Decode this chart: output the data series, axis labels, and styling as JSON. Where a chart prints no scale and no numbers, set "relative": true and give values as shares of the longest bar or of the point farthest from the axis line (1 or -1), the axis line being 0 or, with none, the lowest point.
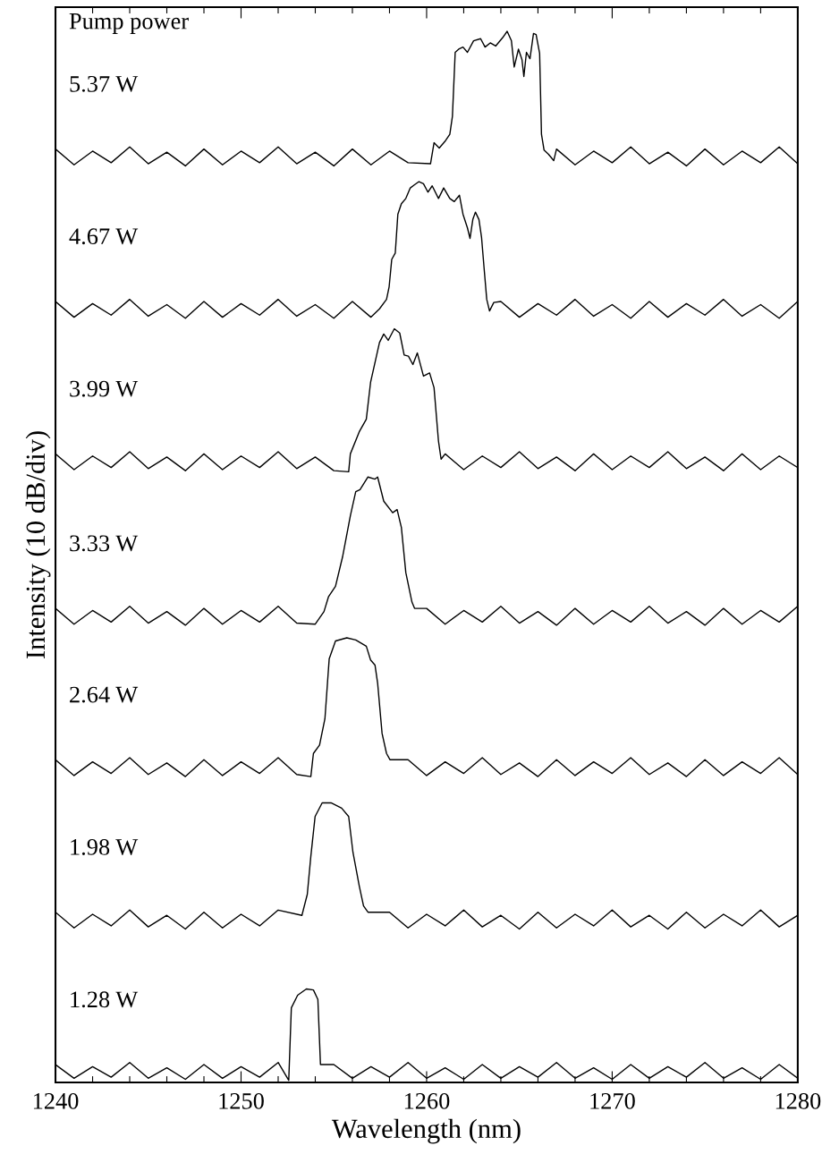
{
  "chart_data": {
    "type": "line",
    "relative": true,
    "xlabel": "Wavelength (nm)",
    "ylabel": "Intensity (10 dB/div)",
    "annotations": [
      "Pump power"
    ],
    "xlim": [
      1240,
      1280
    ],
    "xticks": [
      1240,
      {
        "value": 1242,
        "label": null
      },
      {
        "value": 1244,
        "label": null
      },
      {
        "value": 1246,
        "label": null
      },
      {
        "value": 1248,
        "label": null
      },
      1250,
      {
        "value": 1252,
        "label": null
      },
      {
        "value": 1254,
        "label": null
      },
      {
        "value": 1256,
        "label": null
      },
      {
        "value": 1258,
        "label": null
      },
      1260,
      {
        "value": 1262,
        "label": null
      },
      {
        "value": 1264,
        "label": null
      },
      {
        "value": 1266,
        "label": null
      },
      {
        "value": 1268,
        "label": null
      },
      1270,
      {
        "value": 1272,
        "label": null
      },
      {
        "value": 1274,
        "label": null
      },
      {
        "value": 1276,
        "label": null
      },
      {
        "value": 1278,
        "label": null
      },
      1280
    ],
    "grid": false,
    "legend": false,
    "marker": "none",
    "line_style": "solid",
    "series": [
      {
        "name": "5.37 W",
        "color": "#000000",
        "x": [
          1240,
          1241,
          1242,
          1243,
          1244,
          1245,
          1246,
          1247,
          1248,
          1249,
          1250,
          1251,
          1252,
          1253,
          1254,
          1255,
          1256,
          1257,
          1258,
          1259,
          1260.21,
          1260.4,
          1260.68,
          1261.02,
          1261.25,
          1261.39,
          1261.54,
          1261.73,
          1261.96,
          1262.2,
          1262.53,
          1262.91,
          1263.15,
          1263.43,
          1263.72,
          1264.1,
          1264.34,
          1264.57,
          1264.72,
          1264.95,
          1265.14,
          1265.24,
          1265.38,
          1265.57,
          1265.76,
          1265.9,
          1266.09,
          1266.19,
          1266.33,
          1266.57,
          1266.85,
          1267,
          1268,
          1269,
          1270,
          1271,
          1272,
          1273,
          1274,
          1275,
          1276,
          1277,
          1278,
          1279,
          1280
        ],
        "values": [
          0.888,
          0.873,
          0.886,
          0.875,
          0.89,
          0.874,
          0.885,
          0.872,
          0.888,
          0.873,
          0.886,
          0.875,
          0.89,
          0.874,
          0.885,
          0.872,
          0.888,
          0.873,
          0.886,
          0.875,
          0.874,
          0.894,
          0.889,
          0.896,
          0.902,
          0.919,
          0.98,
          0.983,
          0.985,
          0.98,
          0.991,
          0.993,
          0.985,
          0.989,
          0.986,
          0.994,
          1.0,
          0.991,
          0.966,
          0.983,
          0.973,
          0.957,
          0.98,
          0.974,
          0.998,
          0.997,
          0.979,
          0.902,
          0.887,
          0.883,
          0.877,
          0.888,
          0.873,
          0.886,
          0.875,
          0.89,
          0.874,
          0.885,
          0.872,
          0.888,
          0.873,
          0.886,
          0.875,
          0.89,
          0.874
        ]
      },
      {
        "name": "4.67 W",
        "color": "#000000",
        "x": [
          1240,
          1241,
          1242,
          1243,
          1244,
          1245,
          1246,
          1247,
          1248,
          1249,
          1250,
          1251,
          1252,
          1253,
          1254,
          1255,
          1256,
          1257,
          1257.46,
          1257.84,
          1257.98,
          1258.12,
          1258.31,
          1258.45,
          1258.64,
          1258.88,
          1259.12,
          1259.35,
          1259.59,
          1259.83,
          1260.07,
          1260.3,
          1260.64,
          1260.92,
          1261.25,
          1261.49,
          1261.77,
          1261.96,
          1262.2,
          1262.34,
          1262.49,
          1262.63,
          1262.82,
          1262.96,
          1263.1,
          1263.24,
          1263.39,
          1263.62,
          1264,
          1265,
          1266,
          1267,
          1268,
          1269,
          1270,
          1271,
          1272,
          1273,
          1274,
          1275,
          1276,
          1277,
          1278,
          1279,
          1280
        ],
        "values": [
          0.743,
          0.728,
          0.741,
          0.73,
          0.745,
          0.729,
          0.74,
          0.727,
          0.743,
          0.728,
          0.741,
          0.73,
          0.745,
          0.729,
          0.74,
          0.727,
          0.743,
          0.728,
          0.736,
          0.745,
          0.757,
          0.783,
          0.789,
          0.826,
          0.836,
          0.841,
          0.851,
          0.854,
          0.857,
          0.855,
          0.847,
          0.853,
          0.841,
          0.851,
          0.841,
          0.838,
          0.844,
          0.826,
          0.813,
          0.803,
          0.821,
          0.828,
          0.821,
          0.804,
          0.774,
          0.745,
          0.734,
          0.742,
          0.743,
          0.728,
          0.741,
          0.73,
          0.745,
          0.729,
          0.74,
          0.727,
          0.743,
          0.728,
          0.741,
          0.73,
          0.745,
          0.729,
          0.74,
          0.727,
          0.743
        ]
      },
      {
        "name": "3.99 W",
        "color": "#000000",
        "x": [
          1240,
          1241,
          1242,
          1243,
          1244,
          1245,
          1246,
          1247,
          1248,
          1249,
          1250,
          1251,
          1252,
          1253,
          1254,
          1255,
          1255.8,
          1255.89,
          1256.37,
          1256.75,
          1256.98,
          1257.46,
          1257.69,
          1257.93,
          1258.26,
          1258.55,
          1258.79,
          1259.02,
          1259.26,
          1259.5,
          1259.83,
          1260.16,
          1260.4,
          1260.64,
          1260.78,
          1261,
          1262,
          1263,
          1264,
          1265,
          1266,
          1267,
          1268,
          1269,
          1270,
          1271,
          1272,
          1273,
          1274,
          1275,
          1276,
          1277,
          1278,
          1279,
          1280
        ],
        "values": [
          0.598,
          0.583,
          0.596,
          0.585,
          0.6,
          0.584,
          0.595,
          0.582,
          0.598,
          0.583,
          0.596,
          0.585,
          0.6,
          0.584,
          0.595,
          0.582,
          0.581,
          0.598,
          0.619,
          0.631,
          0.666,
          0.704,
          0.712,
          0.706,
          0.717,
          0.713,
          0.692,
          0.691,
          0.683,
          0.694,
          0.672,
          0.675,
          0.661,
          0.61,
          0.593,
          0.598,
          0.583,
          0.596,
          0.585,
          0.6,
          0.584,
          0.595,
          0.582,
          0.598,
          0.583,
          0.596,
          0.585,
          0.6,
          0.584,
          0.595,
          0.582,
          0.598,
          0.583,
          0.596,
          0.585
        ]
      },
      {
        "name": "3.33 W",
        "color": "#000000",
        "x": [
          1240,
          1241,
          1242,
          1243,
          1244,
          1245,
          1246,
          1247,
          1248,
          1249,
          1250,
          1251,
          1252,
          1253,
          1254,
          1254.47,
          1254.71,
          1255.09,
          1255.47,
          1255.89,
          1256.18,
          1256.41,
          1256.84,
          1257.22,
          1257.36,
          1257.69,
          1258.17,
          1258.41,
          1258.64,
          1258.88,
          1259.21,
          1259.35,
          1260,
          1261,
          1262,
          1263,
          1264,
          1265,
          1266,
          1267,
          1268,
          1269,
          1270,
          1271,
          1272,
          1273,
          1274,
          1275,
          1276,
          1277,
          1278,
          1279,
          1280
        ],
        "values": [
          0.451,
          0.436,
          0.449,
          0.438,
          0.453,
          0.437,
          0.448,
          0.435,
          0.451,
          0.436,
          0.449,
          0.438,
          0.453,
          0.437,
          0.436,
          0.448,
          0.462,
          0.472,
          0.5,
          0.539,
          0.562,
          0.564,
          0.576,
          0.574,
          0.576,
          0.553,
          0.542,
          0.545,
          0.528,
          0.485,
          0.457,
          0.451,
          0.451,
          0.436,
          0.449,
          0.438,
          0.453,
          0.437,
          0.448,
          0.435,
          0.451,
          0.436,
          0.449,
          0.438,
          0.453,
          0.437,
          0.448,
          0.435,
          0.451,
          0.436,
          0.449,
          0.438,
          0.453
        ]
      },
      {
        "name": "2.64 W",
        "color": "#000000",
        "x": [
          1240,
          1241,
          1242,
          1243,
          1244,
          1245,
          1246,
          1247,
          1248,
          1249,
          1250,
          1251,
          1252,
          1253,
          1253.76,
          1253.9,
          1254.23,
          1254.52,
          1254.75,
          1255.09,
          1255.7,
          1256.18,
          1256.75,
          1256.98,
          1257.22,
          1257.36,
          1257.6,
          1257.84,
          1258.03,
          1259,
          1260,
          1261,
          1262,
          1263,
          1264,
          1265,
          1266,
          1267,
          1268,
          1269,
          1270,
          1271,
          1272,
          1273,
          1274,
          1275,
          1276,
          1277,
          1278,
          1279,
          1280
        ],
        "values": [
          0.307,
          0.292,
          0.305,
          0.294,
          0.309,
          0.293,
          0.304,
          0.291,
          0.307,
          0.292,
          0.305,
          0.294,
          0.309,
          0.293,
          0.291,
          0.313,
          0.321,
          0.346,
          0.403,
          0.42,
          0.423,
          0.421,
          0.415,
          0.402,
          0.397,
          0.38,
          0.332,
          0.313,
          0.307,
          0.307,
          0.292,
          0.305,
          0.294,
          0.309,
          0.293,
          0.304,
          0.291,
          0.307,
          0.292,
          0.305,
          0.294,
          0.309,
          0.293,
          0.304,
          0.291,
          0.307,
          0.292,
          0.305,
          0.294,
          0.309,
          0.293
        ]
      },
      {
        "name": "1.98 W",
        "color": "#000000",
        "x": [
          1240,
          1241,
          1242,
          1243,
          1244,
          1245,
          1246,
          1247,
          1248,
          1249,
          1250,
          1251,
          1252,
          1253.28,
          1253.57,
          1253.76,
          1253.99,
          1254.37,
          1254.85,
          1255.42,
          1255.8,
          1256.03,
          1256.37,
          1256.6,
          1256.84,
          1258,
          1259,
          1260,
          1261,
          1262,
          1263,
          1264,
          1265,
          1266,
          1267,
          1268,
          1269,
          1270,
          1271,
          1272,
          1273,
          1274,
          1275,
          1276,
          1277,
          1278,
          1279,
          1280
        ],
        "values": [
          0.162,
          0.147,
          0.16,
          0.149,
          0.164,
          0.148,
          0.159,
          0.146,
          0.162,
          0.147,
          0.16,
          0.149,
          0.164,
          0.159,
          0.179,
          0.215,
          0.253,
          0.266,
          0.266,
          0.261,
          0.253,
          0.219,
          0.187,
          0.168,
          0.162,
          0.162,
          0.147,
          0.16,
          0.149,
          0.164,
          0.148,
          0.159,
          0.146,
          0.162,
          0.147,
          0.16,
          0.149,
          0.164,
          0.148,
          0.159,
          0.146,
          0.162,
          0.147,
          0.16,
          0.149,
          0.164,
          0.148,
          0.159
        ]
      },
      {
        "name": "1.28 W",
        "color": "#000000",
        "x": [
          1240,
          1241,
          1242,
          1243,
          1244,
          1245,
          1246,
          1247,
          1248,
          1249,
          1250,
          1251,
          1252,
          1252.57,
          1252.71,
          1253.05,
          1253.52,
          1253.9,
          1254.14,
          1254.28,
          1254.47,
          1255,
          1256,
          1257,
          1258,
          1259,
          1260,
          1261,
          1262,
          1263,
          1264,
          1265,
          1266,
          1267,
          1268,
          1269,
          1270,
          1271,
          1272,
          1273,
          1274,
          1275,
          1276,
          1277,
          1278,
          1279,
          1280
        ],
        "values": [
          0.017,
          0.004,
          0.015,
          0.005,
          0.019,
          0.004,
          0.014,
          0.003,
          0.017,
          0.004,
          0.015,
          0.005,
          0.019,
          0.002,
          0.071,
          0.083,
          0.089,
          0.088,
          0.079,
          0.017,
          0.017,
          0.017,
          0.004,
          0.015,
          0.005,
          0.019,
          0.004,
          0.014,
          0.003,
          0.017,
          0.004,
          0.015,
          0.005,
          0.019,
          0.004,
          0.014,
          0.003,
          0.017,
          0.004,
          0.015,
          0.005,
          0.019,
          0.004,
          0.014,
          0.003,
          0.017,
          0.004
        ]
      }
    ]
  }
}
